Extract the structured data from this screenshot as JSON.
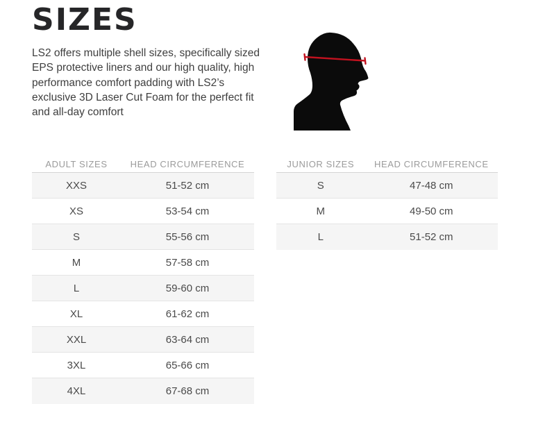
{
  "page": {
    "title": "SIZES",
    "description": "LS2 offers multiple shell sizes, specifically sized EPS protective liners and our high quality, high performance comfort padding with LS2’s exclusive 3D Laser Cut Foam for the perfect fit and all-day comfort"
  },
  "figure": {
    "label": "head-circumference-measurement-diagram"
  },
  "tables": [
    {
      "id": "adult",
      "columns": [
        "ADULT SIZES",
        "HEAD CIRCUMFERENCE"
      ],
      "rows": [
        [
          "XXS",
          "51-52 cm"
        ],
        [
          "XS",
          "53-54 cm"
        ],
        [
          "S",
          "55-56 cm"
        ],
        [
          "M",
          "57-58 cm"
        ],
        [
          "L",
          "59-60 cm"
        ],
        [
          "XL",
          "61-62 cm"
        ],
        [
          "XXL",
          "63-64 cm"
        ],
        [
          "3XL",
          "65-66 cm"
        ],
        [
          "4XL",
          "67-68 cm"
        ]
      ]
    },
    {
      "id": "junior",
      "columns": [
        "JUNIOR SIZES",
        "HEAD CIRCUMFERENCE"
      ],
      "rows": [
        [
          "S",
          "47-48 cm"
        ],
        [
          "M",
          "49-50 cm"
        ],
        [
          "L",
          "51-52 cm"
        ]
      ]
    }
  ],
  "colors": {
    "page_background": "#ffffff",
    "title_text": "#262628",
    "body_text": "#3e3e3e",
    "table_header_text": "#9b9b9b",
    "table_cell_text": "#4a4a4a",
    "row_alt_background": "#f5f5f5",
    "header_border": "#d4d4d4",
    "row_border": "#e4e4e4",
    "silhouette_black": "#0b0b0b",
    "measure_line_red": "#c1121f"
  }
}
